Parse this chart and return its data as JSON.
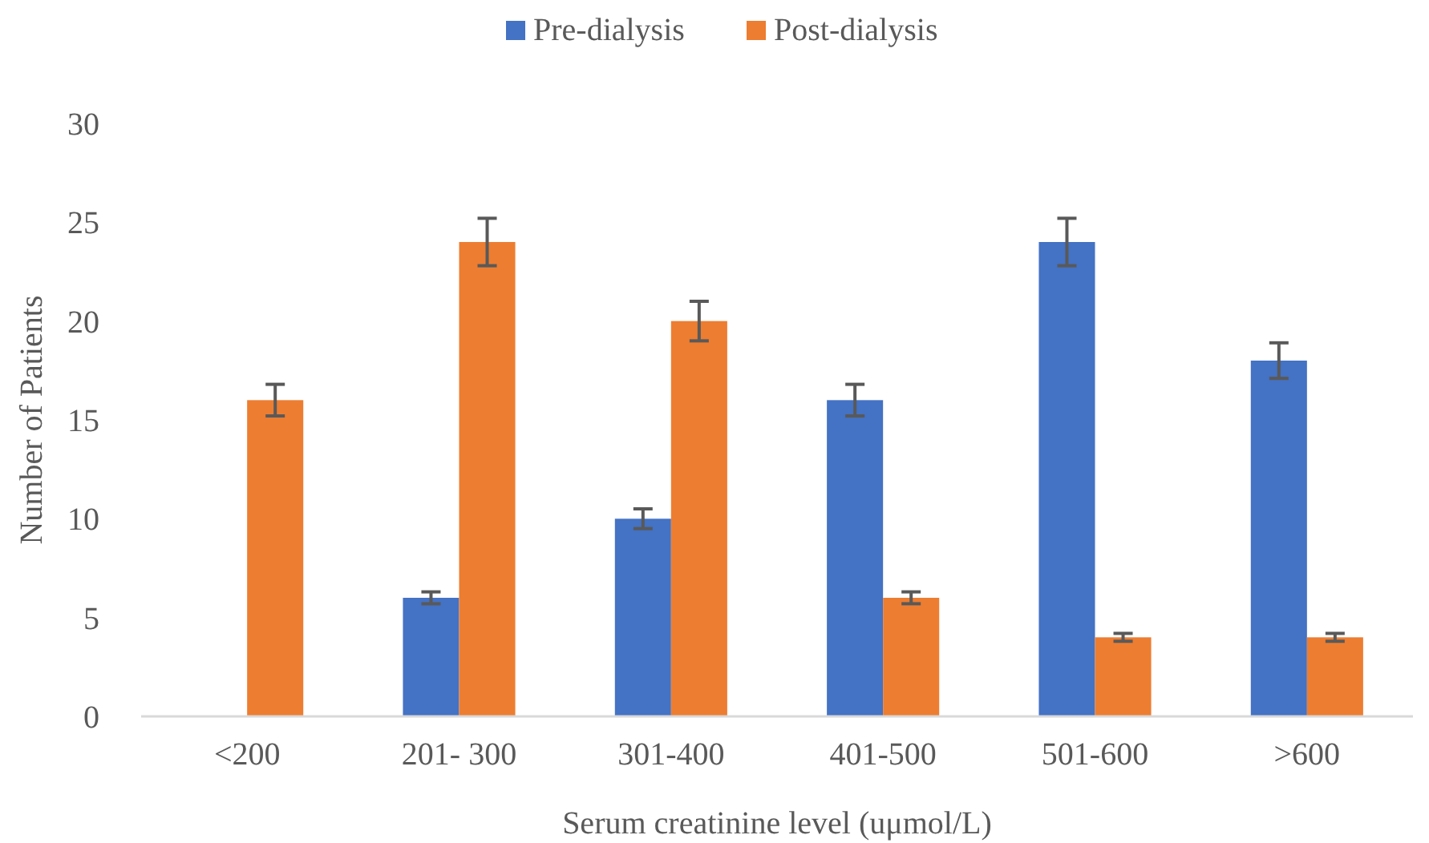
{
  "chart_data": {
    "type": "bar",
    "xlabel": "Serum creatinine level (uμmol/L)",
    "ylabel": "Number of Patients",
    "categories": [
      "<200",
      "201- 300",
      "301-400",
      "401-500",
      "501-600",
      ">600"
    ],
    "series": [
      {
        "name": "Pre-dialysis",
        "color": "#4472c4",
        "values": [
          0,
          6,
          10,
          16,
          24,
          18
        ],
        "errors": [
          null,
          0.3,
          0.5,
          0.8,
          1.2,
          0.9
        ]
      },
      {
        "name": "Post-dialysis",
        "color": "#ed7d31",
        "values": [
          16,
          24,
          20,
          6,
          4,
          4
        ],
        "errors": [
          0.8,
          1.2,
          1,
          0.3,
          0.2,
          0.2
        ]
      }
    ],
    "ylim": [
      0,
      30
    ],
    "yticks": [
      0,
      5,
      10,
      15,
      20,
      25,
      30
    ],
    "legend": "top"
  }
}
